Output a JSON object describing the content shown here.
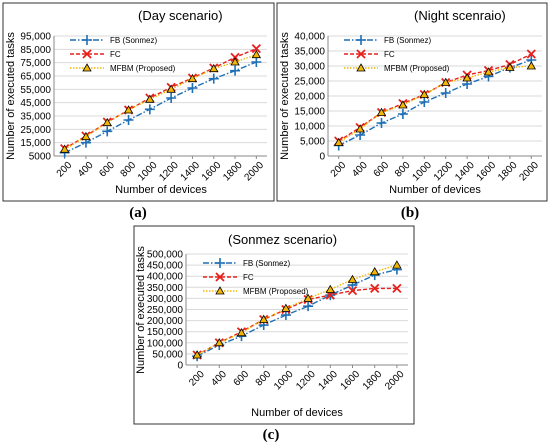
{
  "chart_data": [
    {
      "type": "line",
      "caption": "(a)",
      "title": "(Day scenario)",
      "xlabel": "Number of devices",
      "ylabel": "Number of executed tasks",
      "categories": [
        "200",
        "400",
        "600",
        "800",
        "1000",
        "1200",
        "1400",
        "1600",
        "1800",
        "2000"
      ],
      "ylim": [
        5000,
        95000
      ],
      "yticks": [
        "5000",
        "15,000",
        "25,000",
        "35,000",
        "45,000",
        "55,000",
        "65,000",
        "75,000",
        "85,000",
        "95,000"
      ],
      "legend_position": "top-left",
      "grid": true,
      "series": [
        {
          "name": "FB (Sonmez)",
          "color": "#1f6fb5",
          "marker": "plus",
          "values": [
            7500,
            15000,
            23500,
            32000,
            40000,
            48500,
            56000,
            63000,
            69000,
            75500
          ]
        },
        {
          "name": "FC",
          "color": "#e8201c",
          "marker": "x",
          "values": [
            10500,
            20000,
            30500,
            39500,
            48500,
            56500,
            63500,
            71000,
            79000,
            85500
          ]
        },
        {
          "name": "MFBM (Proposed)",
          "color": "#f2b705",
          "marker": "triangle",
          "values": [
            10000,
            19500,
            30000,
            39500,
            47500,
            55000,
            63000,
            70500,
            75500,
            81000
          ]
        }
      ]
    },
    {
      "type": "line",
      "caption": "(b)",
      "title": "(Night scenraio)",
      "xlabel": "Number of devices",
      "ylabel": "Number of executed tasks",
      "categories": [
        "200",
        "400",
        "600",
        "800",
        "1000",
        "1200",
        "1400",
        "1600",
        "1800",
        "2000"
      ],
      "ylim": [
        0,
        40000
      ],
      "yticks": [
        "0",
        "5,000",
        "10,000",
        "15,000",
        "20,000",
        "25,000",
        "30,000",
        "35,000",
        "40,000"
      ],
      "legend_position": "top-left",
      "grid": true,
      "series": [
        {
          "name": "FB (Sonmez)",
          "color": "#1f6fb5",
          "marker": "plus",
          "values": [
            3500,
            7000,
            11000,
            14000,
            18000,
            21000,
            24000,
            26500,
            29500,
            32000
          ]
        },
        {
          "name": "FC",
          "color": "#e8201c",
          "marker": "x",
          "values": [
            5000,
            9500,
            14500,
            17500,
            20500,
            24500,
            27000,
            28500,
            30500,
            34000
          ]
        },
        {
          "name": "MFBM (Proposed)",
          "color": "#f2b705",
          "marker": "triangle",
          "values": [
            4500,
            9000,
            14500,
            17000,
            20500,
            24500,
            26000,
            28000,
            29500,
            30000
          ]
        }
      ]
    },
    {
      "type": "line",
      "caption": "(c)",
      "title": "(Sonmez scenario)",
      "xlabel": "Number of devices",
      "ylabel": "Number of executed tasks",
      "categories": [
        "200",
        "400",
        "600",
        "800",
        "1000",
        "1200",
        "1400",
        "1600",
        "1800",
        "2000"
      ],
      "ylim": [
        0,
        500000
      ],
      "yticks": [
        "0",
        "50,000",
        "100,000",
        "150,000",
        "200,000",
        "250,000",
        "300,000",
        "350,000",
        "400,000",
        "450,000",
        "500,000"
      ],
      "legend_position": "top-left",
      "grid": true,
      "series": [
        {
          "name": "FB (Sonmez)",
          "color": "#1f6fb5",
          "marker": "plus",
          "values": [
            40000,
            90000,
            130000,
            180000,
            225000,
            265000,
            315000,
            360000,
            405000,
            430000
          ]
        },
        {
          "name": "FC",
          "color": "#e8201c",
          "marker": "x",
          "values": [
            45000,
            100000,
            150000,
            205000,
            250000,
            295000,
            315000,
            335000,
            345000,
            345000
          ]
        },
        {
          "name": "MFBM (Proposed)",
          "color": "#f2b705",
          "marker": "triangle",
          "values": [
            45000,
            100000,
            145000,
            205000,
            255000,
            300000,
            340000,
            385000,
            420000,
            450000
          ]
        }
      ]
    }
  ]
}
